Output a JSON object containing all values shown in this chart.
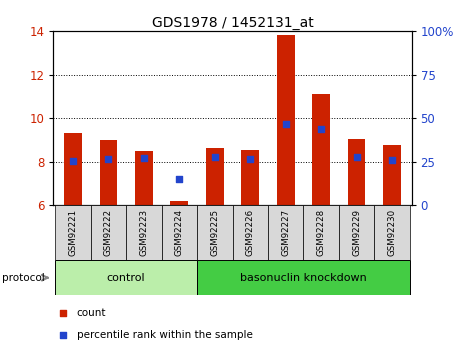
{
  "title": "GDS1978 / 1452131_at",
  "samples": [
    "GSM92221",
    "GSM92222",
    "GSM92223",
    "GSM92224",
    "GSM92225",
    "GSM92226",
    "GSM92227",
    "GSM92228",
    "GSM92229",
    "GSM92230"
  ],
  "count_values": [
    9.3,
    9.0,
    8.5,
    6.2,
    8.65,
    8.55,
    13.8,
    11.1,
    9.05,
    8.75
  ],
  "percentile_values": [
    25.5,
    26.5,
    27.0,
    15.0,
    27.5,
    26.5,
    46.5,
    44.0,
    27.5,
    26.0
  ],
  "ylim_left": [
    6,
    14
  ],
  "ylim_right": [
    0,
    100
  ],
  "yticks_left": [
    6,
    8,
    10,
    12,
    14
  ],
  "yticks_right": [
    0,
    25,
    50,
    75,
    100
  ],
  "ytick_labels_right": [
    "0",
    "25",
    "50",
    "75",
    "100%"
  ],
  "bar_color": "#cc2200",
  "dot_color": "#2244cc",
  "bar_bottom": 6.0,
  "groups": [
    {
      "label": "control",
      "start": 0,
      "end": 4,
      "color": "#bbeeaa"
    },
    {
      "label": "basonuclin knockdown",
      "start": 4,
      "end": 10,
      "color": "#44cc44"
    }
  ],
  "protocol_label": "protocol",
  "legend_items": [
    {
      "label": "count",
      "color": "#cc2200"
    },
    {
      "label": "percentile rank within the sample",
      "color": "#2244cc"
    }
  ],
  "tick_label_color_left": "#cc2200",
  "tick_label_color_right": "#2244cc",
  "bar_width": 0.5,
  "dot_size": 25,
  "xlim": [
    -0.55,
    9.55
  ]
}
